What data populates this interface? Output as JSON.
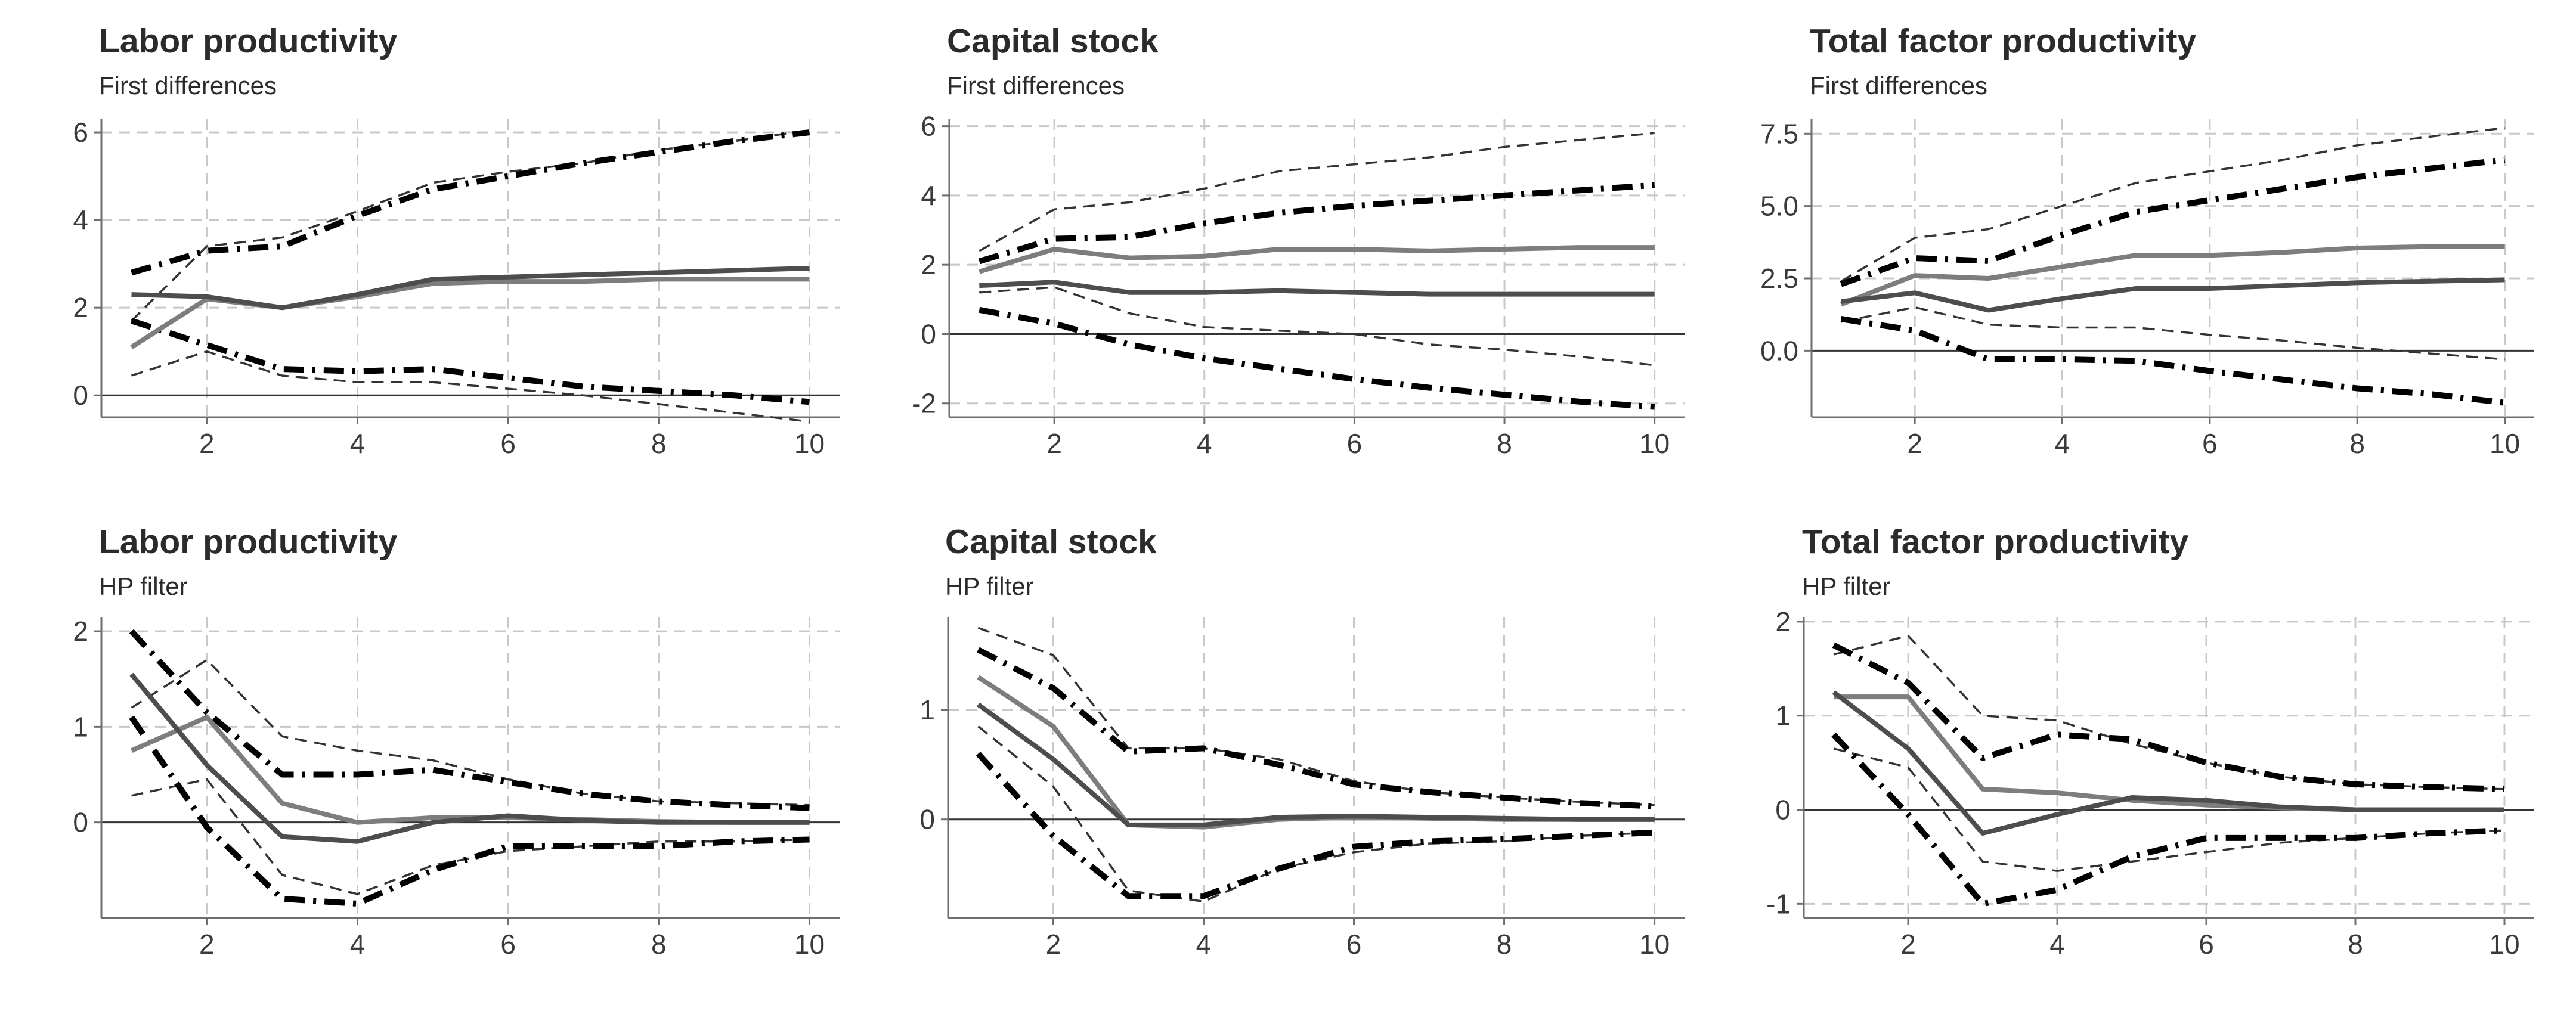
{
  "colors": {
    "estimate_dark": "#4d4d4d",
    "estimate_light": "#7d7d7d",
    "band_dashdot": "#000000",
    "band_dashed": "#333333",
    "grid": "#c8c8c8",
    "zero_line": "#333333"
  },
  "chart_data": [
    {
      "type": "line",
      "title": "Labor productivity",
      "subtitle": "First differences",
      "xlabel": "",
      "ylabel": "",
      "x": [
        1,
        2,
        3,
        4,
        5,
        6,
        7,
        8,
        9,
        10
      ],
      "xlim": [
        0.6,
        10.4
      ],
      "ylim": [
        -0.5,
        6.3
      ],
      "xticks": [
        2,
        4,
        6,
        8,
        10
      ],
      "yticks": [
        0,
        2,
        4,
        6
      ],
      "ytick_labels": [
        "0",
        "2",
        "4",
        "6"
      ],
      "grid": true,
      "series": [
        {
          "style": "dashed",
          "color": "#333333",
          "values": [
            0.45,
            1.0,
            0.45,
            0.3,
            0.3,
            0.15,
            0.0,
            -0.2,
            -0.4,
            -0.6
          ]
        },
        {
          "style": "dashed",
          "color": "#333333",
          "values": [
            1.7,
            3.4,
            3.6,
            4.2,
            4.85,
            5.1,
            5.3,
            5.6,
            5.8,
            6.05
          ]
        },
        {
          "style": "dashdot",
          "color": "#000000",
          "values": [
            1.7,
            1.15,
            0.6,
            0.55,
            0.6,
            0.4,
            0.2,
            0.1,
            0.0,
            -0.15
          ]
        },
        {
          "style": "dashdot",
          "color": "#000000",
          "values": [
            2.8,
            3.3,
            3.4,
            4.1,
            4.7,
            5.0,
            5.3,
            5.55,
            5.8,
            6.0
          ]
        },
        {
          "style": "solid",
          "color": "#7d7d7d",
          "values": [
            1.1,
            2.2,
            2.0,
            2.25,
            2.55,
            2.6,
            2.6,
            2.65,
            2.65,
            2.65
          ]
        },
        {
          "style": "solid",
          "color": "#4d4d4d",
          "values": [
            2.3,
            2.25,
            2.0,
            2.3,
            2.65,
            2.7,
            2.75,
            2.8,
            2.85,
            2.9
          ]
        }
      ]
    },
    {
      "type": "line",
      "title": "Capital stock",
      "subtitle": "First differences",
      "xlabel": "",
      "ylabel": "",
      "x": [
        1,
        2,
        3,
        4,
        5,
        6,
        7,
        8,
        9,
        10
      ],
      "xlim": [
        0.6,
        10.4
      ],
      "ylim": [
        -2.4,
        6.2
      ],
      "xticks": [
        2,
        4,
        6,
        8,
        10
      ],
      "yticks": [
        -2,
        0,
        2,
        4,
        6
      ],
      "ytick_labels": [
        "-2",
        "0",
        "2",
        "4",
        "6"
      ],
      "grid": true,
      "series": [
        {
          "style": "dashed",
          "color": "#333333",
          "values": [
            1.2,
            1.35,
            0.6,
            0.2,
            0.1,
            0.0,
            -0.3,
            -0.45,
            -0.65,
            -0.9
          ]
        },
        {
          "style": "dashed",
          "color": "#333333",
          "values": [
            2.4,
            3.6,
            3.8,
            4.2,
            4.7,
            4.9,
            5.1,
            5.4,
            5.6,
            5.8
          ]
        },
        {
          "style": "dashdot",
          "color": "#000000",
          "values": [
            0.7,
            0.3,
            -0.3,
            -0.7,
            -1.0,
            -1.3,
            -1.55,
            -1.75,
            -1.95,
            -2.1
          ]
        },
        {
          "style": "dashdot",
          "color": "#000000",
          "values": [
            2.1,
            2.75,
            2.8,
            3.2,
            3.5,
            3.7,
            3.85,
            4.0,
            4.15,
            4.3
          ]
        },
        {
          "style": "solid",
          "color": "#7d7d7d",
          "values": [
            1.8,
            2.45,
            2.2,
            2.25,
            2.45,
            2.45,
            2.4,
            2.45,
            2.5,
            2.5
          ]
        },
        {
          "style": "solid",
          "color": "#4d4d4d",
          "values": [
            1.4,
            1.5,
            1.2,
            1.2,
            1.25,
            1.2,
            1.15,
            1.15,
            1.15,
            1.15
          ]
        }
      ]
    },
    {
      "type": "line",
      "title": "Total factor productivity",
      "subtitle": "First differences",
      "xlabel": "",
      "ylabel": "",
      "x": [
        1,
        2,
        3,
        4,
        5,
        6,
        7,
        8,
        9,
        10
      ],
      "xlim": [
        0.6,
        10.4
      ],
      "ylim": [
        -2.3,
        8.0
      ],
      "xticks": [
        2,
        4,
        6,
        8,
        10
      ],
      "yticks": [
        0,
        2.5,
        5,
        7.5
      ],
      "ytick_labels": [
        "0.0",
        "2.5",
        "5.0",
        "7.5"
      ],
      "grid": true,
      "series": [
        {
          "style": "dashed",
          "color": "#333333",
          "values": [
            1.0,
            1.5,
            0.9,
            0.8,
            0.8,
            0.55,
            0.35,
            0.1,
            -0.1,
            -0.3
          ]
        },
        {
          "style": "dashed",
          "color": "#333333",
          "values": [
            2.4,
            3.9,
            4.2,
            5.0,
            5.8,
            6.2,
            6.6,
            7.1,
            7.4,
            7.7
          ]
        },
        {
          "style": "dashdot",
          "color": "#000000",
          "values": [
            1.1,
            0.7,
            -0.3,
            -0.3,
            -0.35,
            -0.7,
            -1.0,
            -1.3,
            -1.5,
            -1.8
          ]
        },
        {
          "style": "dashdot",
          "color": "#000000",
          "values": [
            2.3,
            3.2,
            3.1,
            4.0,
            4.8,
            5.2,
            5.6,
            6.0,
            6.3,
            6.6
          ]
        },
        {
          "style": "solid",
          "color": "#7d7d7d",
          "values": [
            1.6,
            2.6,
            2.5,
            2.9,
            3.3,
            3.3,
            3.4,
            3.55,
            3.6,
            3.6
          ]
        },
        {
          "style": "solid",
          "color": "#4d4d4d",
          "values": [
            1.7,
            2.0,
            1.4,
            1.8,
            2.15,
            2.15,
            2.25,
            2.35,
            2.4,
            2.45
          ]
        }
      ]
    },
    {
      "type": "line",
      "title": "Labor productivity",
      "subtitle": "HP filter",
      "xlabel": "",
      "ylabel": "",
      "x": [
        1,
        2,
        3,
        4,
        5,
        6,
        7,
        8,
        9,
        10
      ],
      "xlim": [
        0.6,
        10.4
      ],
      "ylim": [
        -1.0,
        2.15
      ],
      "xticks": [
        2,
        4,
        6,
        8,
        10
      ],
      "yticks": [
        0,
        1,
        2
      ],
      "ytick_labels": [
        "0",
        "1",
        "2"
      ],
      "grid": true,
      "series": [
        {
          "style": "dashed",
          "color": "#333333",
          "values": [
            0.28,
            0.45,
            -0.55,
            -0.75,
            -0.45,
            -0.3,
            -0.25,
            -0.2,
            -0.2,
            -0.18
          ]
        },
        {
          "style": "dashed",
          "color": "#333333",
          "values": [
            1.2,
            1.7,
            0.9,
            0.75,
            0.65,
            0.45,
            0.3,
            0.22,
            0.2,
            0.18
          ]
        },
        {
          "style": "dashdot",
          "color": "#000000",
          "values": [
            1.1,
            -0.05,
            -0.8,
            -0.85,
            -0.5,
            -0.25,
            -0.25,
            -0.25,
            -0.2,
            -0.18
          ]
        },
        {
          "style": "dashdot",
          "color": "#000000",
          "values": [
            2.0,
            1.15,
            0.5,
            0.5,
            0.55,
            0.42,
            0.3,
            0.22,
            0.18,
            0.15
          ]
        },
        {
          "style": "solid",
          "color": "#7d7d7d",
          "values": [
            0.75,
            1.1,
            0.2,
            0.0,
            0.05,
            0.05,
            0.03,
            0.01,
            0.0,
            0.0
          ]
        },
        {
          "style": "solid",
          "color": "#4d4d4d",
          "values": [
            1.55,
            0.6,
            -0.15,
            -0.2,
            0.0,
            0.07,
            0.02,
            0.0,
            0.0,
            0.0
          ]
        }
      ]
    },
    {
      "type": "line",
      "title": "Capital stock",
      "subtitle": "HP filter",
      "xlabel": "",
      "ylabel": "",
      "x": [
        1,
        2,
        3,
        4,
        5,
        6,
        7,
        8,
        9,
        10
      ],
      "xlim": [
        0.6,
        10.4
      ],
      "ylim": [
        -0.9,
        1.85
      ],
      "xticks": [
        2,
        4,
        6,
        8,
        10
      ],
      "yticks": [
        0,
        1
      ],
      "ytick_labels": [
        "0",
        "1"
      ],
      "grid": true,
      "series": [
        {
          "style": "dashed",
          "color": "#333333",
          "values": [
            0.85,
            0.3,
            -0.65,
            -0.75,
            -0.45,
            -0.3,
            -0.22,
            -0.2,
            -0.15,
            -0.12
          ]
        },
        {
          "style": "dashed",
          "color": "#333333",
          "values": [
            1.75,
            1.5,
            0.65,
            0.65,
            0.55,
            0.35,
            0.25,
            0.2,
            0.16,
            0.13
          ]
        },
        {
          "style": "dashdot",
          "color": "#000000",
          "values": [
            0.6,
            -0.15,
            -0.7,
            -0.7,
            -0.45,
            -0.25,
            -0.2,
            -0.18,
            -0.15,
            -0.12
          ]
        },
        {
          "style": "dashdot",
          "color": "#000000",
          "values": [
            1.55,
            1.2,
            0.62,
            0.65,
            0.5,
            0.32,
            0.25,
            0.2,
            0.15,
            0.12
          ]
        },
        {
          "style": "solid",
          "color": "#7d7d7d",
          "values": [
            1.3,
            0.85,
            -0.05,
            -0.07,
            0.0,
            0.02,
            0.01,
            0.0,
            0.0,
            0.0
          ]
        },
        {
          "style": "solid",
          "color": "#4d4d4d",
          "values": [
            1.05,
            0.55,
            -0.05,
            -0.05,
            0.02,
            0.03,
            0.02,
            0.01,
            0.0,
            0.0
          ]
        }
      ]
    },
    {
      "type": "line",
      "title": "Total factor productivity",
      "subtitle": "HP filter",
      "xlabel": "",
      "ylabel": "",
      "x": [
        1,
        2,
        3,
        4,
        5,
        6,
        7,
        8,
        9,
        10
      ],
      "xlim": [
        0.6,
        10.4
      ],
      "ylim": [
        -1.15,
        2.05
      ],
      "xticks": [
        2,
        4,
        6,
        8,
        10
      ],
      "yticks": [
        -1,
        0,
        1,
        2
      ],
      "ytick_labels": [
        "-1",
        "0",
        "1",
        "2"
      ],
      "grid": true,
      "series": [
        {
          "style": "dashed",
          "color": "#333333",
          "values": [
            0.65,
            0.45,
            -0.55,
            -0.65,
            -0.55,
            -0.45,
            -0.35,
            -0.3,
            -0.25,
            -0.22
          ]
        },
        {
          "style": "dashed",
          "color": "#333333",
          "values": [
            1.65,
            1.85,
            1.0,
            0.95,
            0.7,
            0.5,
            0.35,
            0.27,
            0.24,
            0.22
          ]
        },
        {
          "style": "dashdot",
          "color": "#000000",
          "values": [
            0.8,
            -0.05,
            -1.0,
            -0.85,
            -0.5,
            -0.3,
            -0.3,
            -0.3,
            -0.25,
            -0.22
          ]
        },
        {
          "style": "dashdot",
          "color": "#000000",
          "values": [
            1.75,
            1.35,
            0.55,
            0.8,
            0.75,
            0.5,
            0.35,
            0.27,
            0.24,
            0.22
          ]
        },
        {
          "style": "solid",
          "color": "#7d7d7d",
          "values": [
            1.2,
            1.2,
            0.22,
            0.18,
            0.1,
            0.05,
            0.02,
            0.0,
            0.0,
            0.0
          ]
        },
        {
          "style": "solid",
          "color": "#4d4d4d",
          "values": [
            1.25,
            0.65,
            -0.25,
            -0.05,
            0.13,
            0.1,
            0.03,
            0.0,
            0.0,
            0.0
          ]
        }
      ]
    }
  ]
}
